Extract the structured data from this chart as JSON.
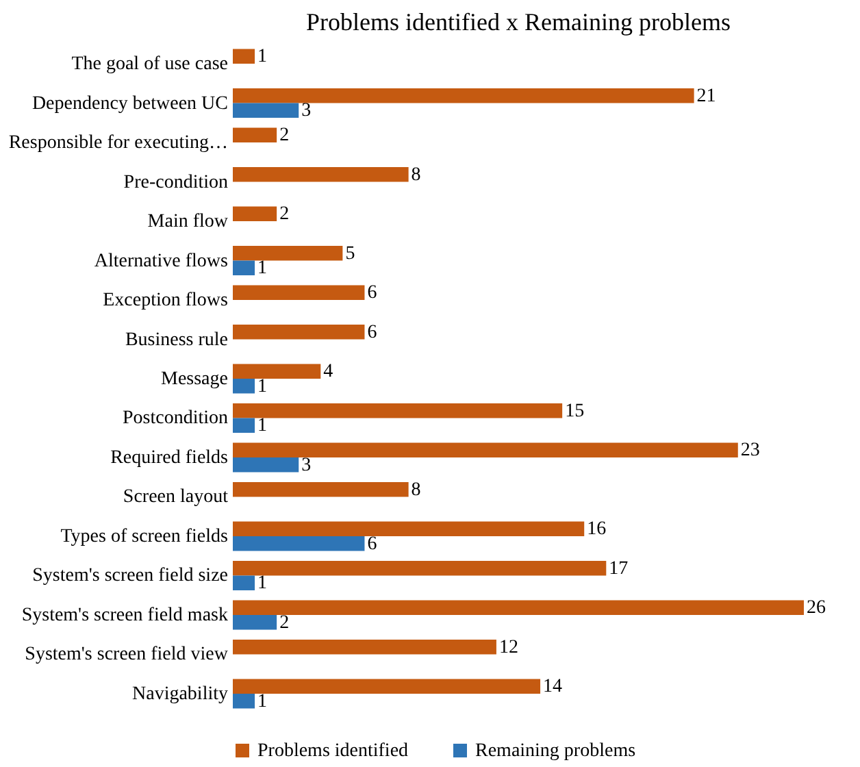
{
  "chart_data": {
    "type": "bar",
    "orientation": "horizontal",
    "title": "Problems identified x Remaining problems",
    "categories": [
      "The goal of use case",
      "Dependency between UC",
      "Responsible for executing…",
      "Pre-condition",
      "Main flow",
      "Alternative flows",
      "Exception flows",
      "Business rule",
      "Message",
      "Postcondition",
      "Required fields",
      "Screen layout",
      "Types of screen fields",
      "System's screen field size",
      "System's screen field mask",
      "System's screen field view",
      "Navigability"
    ],
    "series": [
      {
        "name": "Problems identified",
        "color": "#c55a11",
        "values": [
          1,
          21,
          2,
          8,
          2,
          5,
          6,
          6,
          4,
          15,
          23,
          8,
          16,
          17,
          26,
          12,
          14
        ]
      },
      {
        "name": "Remaining problems",
        "color": "#2e75b6",
        "values": [
          null,
          3,
          null,
          null,
          null,
          1,
          null,
          null,
          1,
          1,
          3,
          null,
          6,
          1,
          2,
          null,
          1
        ]
      }
    ],
    "data_labels": true,
    "legend": "bottom",
    "grid": false,
    "tick_labels": "y"
  }
}
